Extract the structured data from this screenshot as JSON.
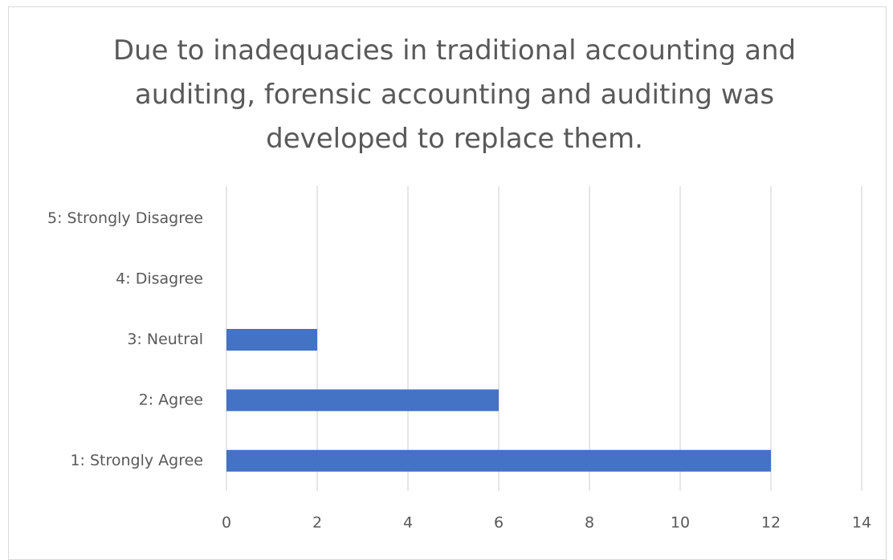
{
  "chart_data": {
    "type": "bar",
    "orientation": "horizontal",
    "title": "Due to inadequacies in traditional accounting and auditing, forensic accounting and auditing was developed to replace them.",
    "categories": [
      "1: Strongly Agree",
      "2: Agree",
      "3: Neutral",
      "4: Disagree",
      "5: Strongly Disagree"
    ],
    "values": [
      12,
      6,
      2,
      0,
      0
    ],
    "color": "#4472c4",
    "xlim": [
      0,
      14
    ],
    "xticks": [
      0,
      2,
      4,
      6,
      8,
      10,
      12,
      14
    ],
    "grid": true
  }
}
